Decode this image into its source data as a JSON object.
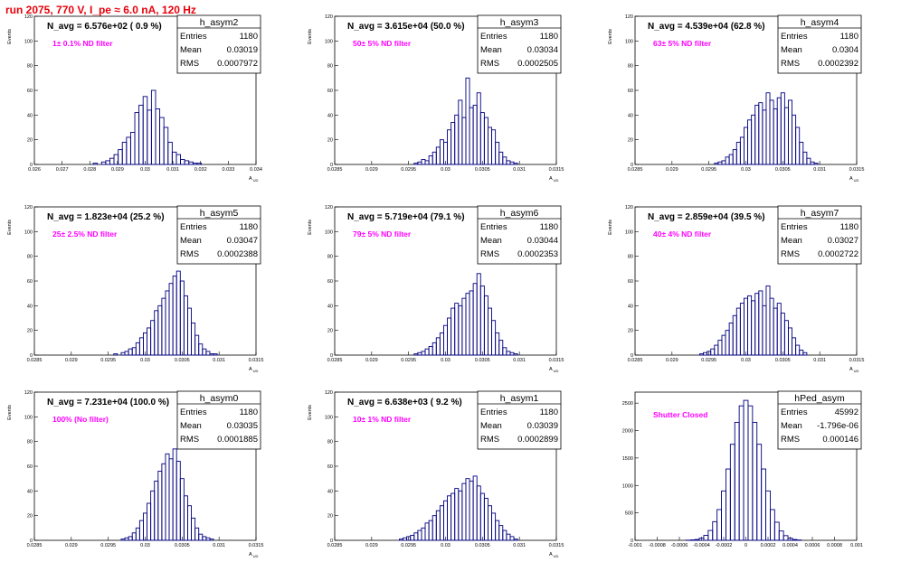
{
  "run_title": "run 2075,   770 V, I_pe ≈ 6.0 nA, 120 Hz",
  "colors": {
    "title": "#e8000b",
    "note": "#ff00ff",
    "histogram": "#000080",
    "axes": "#000000"
  },
  "panels": [
    {
      "hist_name": "h_asym2",
      "navg": "N_avg = 6.576e+02 ( 0.9 %)",
      "note": "1± 0.1% ND filter",
      "stats": [
        {
          "label": "Entries",
          "value": "1180"
        },
        {
          "label": "Mean",
          "value": "0.03019"
        },
        {
          "label": "RMS",
          "value": "0.0007972"
        }
      ],
      "y_axis_label": "Events",
      "x_axis_label": "A_UD"
    },
    {
      "hist_name": "h_asym3",
      "navg": "N_avg = 3.615e+04 (50.0 %)",
      "note": "50± 5% ND filter",
      "stats": [
        {
          "label": "Entries",
          "value": "1180"
        },
        {
          "label": "Mean",
          "value": "0.03034"
        },
        {
          "label": "RMS",
          "value": "0.0002505"
        }
      ],
      "y_axis_label": "Events",
      "x_axis_label": "A_UD"
    },
    {
      "hist_name": "h_asym4",
      "navg": "N_avg = 4.539e+04 (62.8 %)",
      "note": "63± 5% ND filter",
      "stats": [
        {
          "label": "Entries",
          "value": "1180"
        },
        {
          "label": "Mean",
          "value": "0.0304"
        },
        {
          "label": "RMS",
          "value": "0.0002392"
        }
      ],
      "y_axis_label": "Events",
      "x_axis_label": "A_UD"
    },
    {
      "hist_name": "h_asym5",
      "navg": "N_avg = 1.823e+04 (25.2 %)",
      "note": "25± 2.5% ND filter",
      "stats": [
        {
          "label": "Entries",
          "value": "1180"
        },
        {
          "label": "Mean",
          "value": "0.03047"
        },
        {
          "label": "RMS",
          "value": "0.0002388"
        }
      ],
      "y_axis_label": "Events",
      "x_axis_label": "A_UD"
    },
    {
      "hist_name": "h_asym6",
      "navg": "N_avg = 5.719e+04 (79.1 %)",
      "note": "79± 5% ND filter",
      "stats": [
        {
          "label": "Entries",
          "value": "1180"
        },
        {
          "label": "Mean",
          "value": "0.03044"
        },
        {
          "label": "RMS",
          "value": "0.0002353"
        }
      ],
      "y_axis_label": "Events",
      "x_axis_label": "A_UD"
    },
    {
      "hist_name": "h_asym7",
      "navg": "N_avg = 2.859e+04 (39.5 %)",
      "note": "40± 4% ND filter",
      "stats": [
        {
          "label": "Entries",
          "value": "1180"
        },
        {
          "label": "Mean",
          "value": "0.03027"
        },
        {
          "label": "RMS",
          "value": "0.0002722"
        }
      ],
      "y_axis_label": "Events",
      "x_axis_label": "A_UD"
    },
    {
      "hist_name": "h_asym0",
      "navg": "N_avg = 7.231e+04 (100.0 %)",
      "note": "100% (No filter)",
      "stats": [
        {
          "label": "Entries",
          "value": "1180"
        },
        {
          "label": "Mean",
          "value": "0.03035"
        },
        {
          "label": "RMS",
          "value": "0.0001885"
        }
      ],
      "y_axis_label": "Events",
      "x_axis_label": "A_UD"
    },
    {
      "hist_name": "h_asym1",
      "navg": "N_avg = 6.638e+03 ( 9.2 %)",
      "note": "10± 1% ND filter",
      "stats": [
        {
          "label": "Entries",
          "value": "1180"
        },
        {
          "label": "Mean",
          "value": "0.03039"
        },
        {
          "label": "RMS",
          "value": "0.0002899"
        }
      ],
      "y_axis_label": "Events",
      "x_axis_label": "A_UD"
    },
    {
      "hist_name": "hPed_asym",
      "navg": "",
      "note": "Shutter Closed",
      "stats": [
        {
          "label": "Entries",
          "value": "45992"
        },
        {
          "label": "Mean",
          "value": "-1.796e-06"
        },
        {
          "label": "RMS",
          "value": "0.000146"
        }
      ],
      "y_axis_label": "",
      "x_axis_label": ""
    }
  ],
  "chart_data": [
    {
      "type": "bar",
      "name": "h_asym2",
      "x": [
        0.0282,
        0.02835,
        0.0285,
        0.02865,
        0.0288,
        0.02895,
        0.0291,
        0.02925,
        0.0294,
        0.02955,
        0.0297,
        0.02985,
        0.03,
        0.03015,
        0.0303,
        0.03045,
        0.0306,
        0.03075,
        0.0309,
        0.03105,
        0.0312,
        0.03135,
        0.0315,
        0.03165,
        0.0318,
        0.03195
      ],
      "y": [
        1,
        0,
        2,
        3,
        5,
        8,
        12,
        18,
        22,
        26,
        42,
        48,
        55,
        44,
        60,
        45,
        38,
        30,
        18,
        10,
        8,
        4,
        3,
        2,
        1,
        1
      ],
      "xlim": [
        0.026,
        0.034
      ],
      "ylim": [
        0,
        120
      ],
      "xticks": [
        "0.026",
        "0.027",
        "0.028",
        "0.029",
        "0.03",
        "0.031",
        "0.032",
        "0.033",
        "0.034"
      ],
      "yticks": [
        "0",
        "20",
        "40",
        "60",
        "80",
        "100",
        "120"
      ]
    },
    {
      "type": "bar",
      "name": "h_asym3",
      "x": [
        0.0296,
        0.02965,
        0.0297,
        0.02975,
        0.0298,
        0.02985,
        0.0299,
        0.02995,
        0.03,
        0.03005,
        0.0301,
        0.03015,
        0.0302,
        0.03025,
        0.0303,
        0.03035,
        0.0304,
        0.03045,
        0.0305,
        0.03055,
        0.0306,
        0.03065,
        0.0307,
        0.03075,
        0.0308,
        0.03085,
        0.0309,
        0.03095
      ],
      "y": [
        1,
        2,
        4,
        3,
        7,
        10,
        14,
        20,
        18,
        28,
        34,
        40,
        52,
        38,
        70,
        46,
        48,
        58,
        42,
        38,
        30,
        28,
        18,
        10,
        6,
        3,
        2,
        1
      ],
      "xlim": [
        0.0285,
        0.0315
      ],
      "ylim": [
        0,
        120
      ],
      "xticks": [
        "0.0285",
        "0.029",
        "0.0295",
        "0.03",
        "0.0305",
        "0.031",
        "0.0315"
      ],
      "yticks": [
        "0",
        "20",
        "40",
        "60",
        "80",
        "100",
        "120"
      ]
    },
    {
      "type": "bar",
      "name": "h_asym4",
      "x": [
        0.0296,
        0.02965,
        0.0297,
        0.02975,
        0.0298,
        0.02985,
        0.0299,
        0.02995,
        0.03,
        0.03005,
        0.0301,
        0.03015,
        0.0302,
        0.03025,
        0.0303,
        0.03035,
        0.0304,
        0.03045,
        0.0305,
        0.03055,
        0.0306,
        0.03065,
        0.0307,
        0.03075,
        0.0308,
        0.03085,
        0.0309,
        0.03095
      ],
      "y": [
        1,
        2,
        3,
        6,
        8,
        12,
        18,
        22,
        30,
        36,
        40,
        48,
        50,
        44,
        58,
        52,
        45,
        54,
        58,
        46,
        52,
        40,
        30,
        18,
        10,
        5,
        2,
        1
      ],
      "xlim": [
        0.0285,
        0.0315
      ],
      "ylim": [
        0,
        120
      ],
      "xticks": [
        "0.0285",
        "0.029",
        "0.0295",
        "0.03",
        "0.0305",
        "0.031",
        "0.0315"
      ],
      "yticks": [
        "0",
        "20",
        "40",
        "60",
        "80",
        "100",
        "120"
      ]
    },
    {
      "type": "bar",
      "name": "h_asym5",
      "x": [
        0.0296,
        0.02965,
        0.0297,
        0.02975,
        0.0298,
        0.02985,
        0.0299,
        0.02995,
        0.03,
        0.03005,
        0.0301,
        0.03015,
        0.0302,
        0.03025,
        0.0303,
        0.03035,
        0.0304,
        0.03045,
        0.0305,
        0.03055,
        0.0306,
        0.03065,
        0.0307,
        0.03075,
        0.0308,
        0.03085,
        0.0309,
        0.03095
      ],
      "y": [
        1,
        0,
        2,
        3,
        5,
        6,
        10,
        14,
        18,
        22,
        28,
        36,
        40,
        46,
        52,
        58,
        64,
        68,
        60,
        48,
        38,
        26,
        16,
        9,
        5,
        3,
        1,
        1
      ],
      "xlim": [
        0.0285,
        0.0315
      ],
      "ylim": [
        0,
        120
      ],
      "xticks": [
        "0.0285",
        "0.029",
        "0.0295",
        "0.03",
        "0.0305",
        "0.031",
        "0.0315"
      ],
      "yticks": [
        "0",
        "20",
        "40",
        "60",
        "80",
        "100",
        "120"
      ]
    },
    {
      "type": "bar",
      "name": "h_asym6",
      "x": [
        0.0296,
        0.02965,
        0.0297,
        0.02975,
        0.0298,
        0.02985,
        0.0299,
        0.02995,
        0.03,
        0.03005,
        0.0301,
        0.03015,
        0.0302,
        0.03025,
        0.0303,
        0.03035,
        0.0304,
        0.03045,
        0.0305,
        0.03055,
        0.0306,
        0.03065,
        0.0307,
        0.03075,
        0.0308,
        0.03085,
        0.0309,
        0.03095
      ],
      "y": [
        1,
        2,
        3,
        5,
        7,
        10,
        14,
        18,
        24,
        30,
        38,
        42,
        40,
        46,
        50,
        52,
        58,
        66,
        56,
        48,
        38,
        28,
        18,
        12,
        6,
        3,
        2,
        1
      ],
      "xlim": [
        0.0285,
        0.0315
      ],
      "ylim": [
        0,
        120
      ],
      "xticks": [
        "0.0285",
        "0.029",
        "0.0295",
        "0.03",
        "0.0305",
        "0.031",
        "0.0315"
      ],
      "yticks": [
        "0",
        "20",
        "40",
        "60",
        "80",
        "100",
        "120"
      ]
    },
    {
      "type": "bar",
      "name": "h_asym7",
      "x": [
        0.0294,
        0.02945,
        0.0295,
        0.02955,
        0.0296,
        0.02965,
        0.0297,
        0.02975,
        0.0298,
        0.02985,
        0.0299,
        0.02995,
        0.03,
        0.03005,
        0.0301,
        0.03015,
        0.0302,
        0.03025,
        0.0303,
        0.03035,
        0.0304,
        0.03045,
        0.0305,
        0.03055,
        0.0306,
        0.03065,
        0.0307,
        0.03075,
        0.0308
      ],
      "y": [
        1,
        2,
        3,
        5,
        8,
        12,
        16,
        20,
        26,
        32,
        38,
        42,
        46,
        48,
        44,
        50,
        52,
        40,
        56,
        46,
        38,
        42,
        34,
        28,
        22,
        14,
        8,
        4,
        2
      ],
      "xlim": [
        0.0285,
        0.0315
      ],
      "ylim": [
        0,
        120
      ],
      "xticks": [
        "0.0285",
        "0.029",
        "0.0295",
        "0.03",
        "0.0305",
        "0.031",
        "0.0315"
      ],
      "yticks": [
        "0",
        "20",
        "40",
        "60",
        "80",
        "100",
        "120"
      ]
    },
    {
      "type": "bar",
      "name": "h_asym0",
      "x": [
        0.0297,
        0.02975,
        0.0298,
        0.02985,
        0.0299,
        0.02995,
        0.03,
        0.03005,
        0.0301,
        0.03015,
        0.0302,
        0.03025,
        0.0303,
        0.03035,
        0.0304,
        0.03045,
        0.0305,
        0.03055,
        0.0306,
        0.03065,
        0.0307,
        0.03075,
        0.0308,
        0.03085,
        0.0309
      ],
      "y": [
        1,
        2,
        3,
        6,
        10,
        16,
        22,
        30,
        40,
        48,
        56,
        62,
        70,
        66,
        74,
        64,
        50,
        36,
        28,
        18,
        10,
        5,
        3,
        2,
        1
      ],
      "xlim": [
        0.0285,
        0.0315
      ],
      "ylim": [
        0,
        120
      ],
      "xticks": [
        "0.0285",
        "0.029",
        "0.0295",
        "0.03",
        "0.0305",
        "0.031",
        "0.0315"
      ],
      "yticks": [
        "0",
        "20",
        "40",
        "60",
        "80",
        "100",
        "120"
      ]
    },
    {
      "type": "bar",
      "name": "h_asym1",
      "x": [
        0.0294,
        0.02945,
        0.0295,
        0.02955,
        0.0296,
        0.02965,
        0.0297,
        0.02975,
        0.0298,
        0.02985,
        0.0299,
        0.02995,
        0.03,
        0.03005,
        0.0301,
        0.03015,
        0.0302,
        0.03025,
        0.0303,
        0.03035,
        0.0304,
        0.03045,
        0.0305,
        0.03055,
        0.0306,
        0.03065,
        0.0307,
        0.03075,
        0.0308,
        0.03085,
        0.0309,
        0.03095
      ],
      "y": [
        1,
        2,
        3,
        4,
        6,
        8,
        10,
        14,
        16,
        20,
        24,
        28,
        32,
        36,
        38,
        42,
        40,
        46,
        50,
        48,
        52,
        44,
        38,
        34,
        28,
        22,
        16,
        12,
        8,
        5,
        3,
        1
      ],
      "xlim": [
        0.0285,
        0.0315
      ],
      "ylim": [
        0,
        120
      ],
      "xticks": [
        "0.0285",
        "0.029",
        "0.0295",
        "0.03",
        "0.0305",
        "0.031",
        "0.0315"
      ],
      "yticks": [
        "0",
        "20",
        "40",
        "60",
        "80",
        "100",
        "120"
      ]
    },
    {
      "type": "bar",
      "name": "hPed_asym",
      "x": [
        -0.00052,
        -0.00048,
        -0.00044,
        -0.0004,
        -0.00036,
        -0.00032,
        -0.00028,
        -0.00024,
        -0.0002,
        -0.00016,
        -0.00012,
        -8e-05,
        -4e-05,
        0,
        4e-05,
        8e-05,
        0.00012,
        0.00016,
        0.0002,
        0.00024,
        0.00028,
        0.00032,
        0.00036,
        0.0004,
        0.00044,
        0.00048
      ],
      "y": [
        3,
        8,
        15,
        40,
        90,
        180,
        340,
        560,
        900,
        1300,
        1750,
        2150,
        2450,
        2550,
        2450,
        2150,
        1750,
        1300,
        900,
        560,
        330,
        170,
        85,
        40,
        15,
        6
      ],
      "xlim": [
        -0.001,
        0.001
      ],
      "ylim": [
        0,
        2700
      ],
      "xticks": [
        "-0.001",
        "-0.0008",
        "-0.0006",
        "-0.0004",
        "-0.0002",
        "0",
        "0.0002",
        "0.0004",
        "0.0006",
        "0.0008",
        "0.001"
      ],
      "yticks": [
        "0",
        "500",
        "1000",
        "1500",
        "2000",
        "2500"
      ]
    }
  ]
}
